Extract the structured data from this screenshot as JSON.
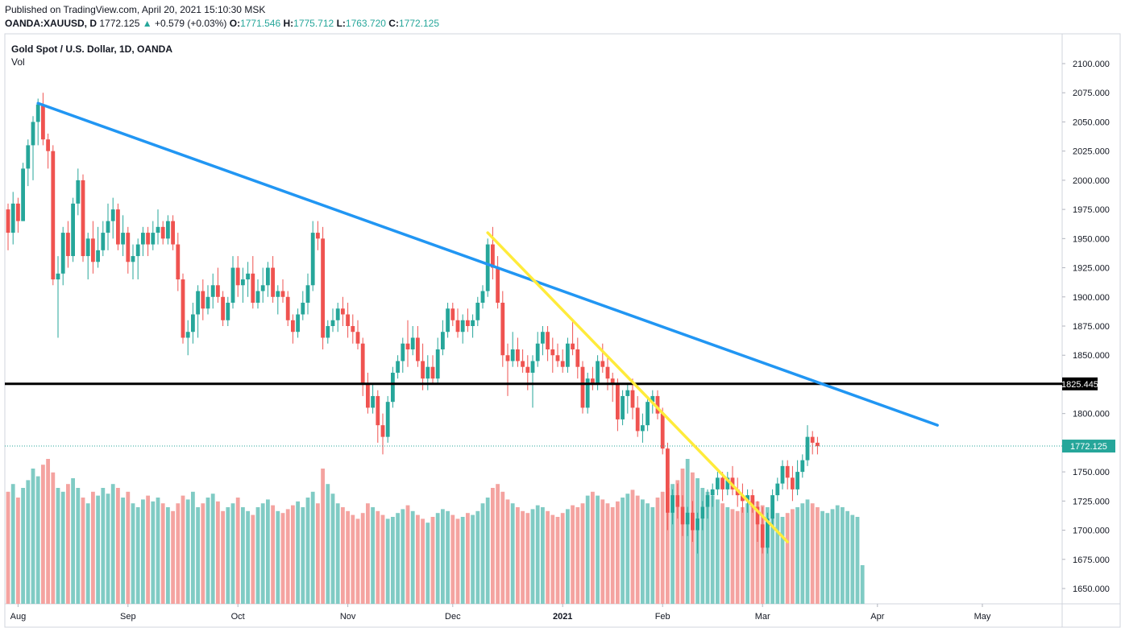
{
  "header": {
    "published": "Published on TradingView.com, April 20, 2021 15:10:30 MSK",
    "symbol_line": "OANDA:XAUUSD, D",
    "last": "1772.125",
    "change_arrow": "▲",
    "change": "+0.579 (+0.03%)",
    "o_label": "O:",
    "o_value": "1771.546",
    "h_label": "H:",
    "h_value": "1775.712",
    "l_label": "L:",
    "l_value": "1763.720",
    "c_label": "C:",
    "c_value": "1772.125"
  },
  "chart_data": {
    "type": "candlestick",
    "title": "Gold Spot / U.S. Dollar, 1D, OANDA",
    "volume_label": "Vol",
    "y_ticks": [
      2100,
      2075,
      2050,
      2025,
      2000,
      1975,
      1950,
      1925,
      1900,
      1875,
      1850,
      1825,
      1800,
      1775,
      1750,
      1725,
      1700,
      1675,
      1650
    ],
    "y_tick_labels": [
      "2100.000",
      "2075.000",
      "2050.000",
      "2025.000",
      "2000.000",
      "1975.000",
      "1950.000",
      "1925.000",
      "1900.000",
      "1875.000",
      "1850.000",
      "1800.000",
      "1750.000",
      "1725.000",
      "1700.000",
      "1675.000",
      "1650.000"
    ],
    "ylim": [
      1640,
      2110
    ],
    "x_labels": [
      {
        "text": "Aug",
        "bar": 2,
        "bold": false
      },
      {
        "text": "Sep",
        "bar": 24,
        "bold": false
      },
      {
        "text": "Oct",
        "bar": 46,
        "bold": false
      },
      {
        "text": "Nov",
        "bar": 68,
        "bold": false
      },
      {
        "text": "Dec",
        "bar": 89,
        "bold": false
      },
      {
        "text": "2021",
        "bar": 111,
        "bold": true
      },
      {
        "text": "Feb",
        "bar": 131,
        "bold": false
      },
      {
        "text": "Mar",
        "bar": 151,
        "bold": false
      },
      {
        "text": "Apr",
        "bar": 174,
        "bold": false
      },
      {
        "text": "May",
        "bar": 195,
        "bold": false
      }
    ],
    "candles": [
      [
        1975,
        1980,
        1940,
        1955
      ],
      [
        1955,
        1990,
        1945,
        1980
      ],
      [
        1980,
        1985,
        1955,
        1965
      ],
      [
        1965,
        2015,
        1965,
        2010
      ],
      [
        2010,
        2035,
        1995,
        2030
      ],
      [
        2030,
        2055,
        2000,
        2050
      ],
      [
        2050,
        2070,
        2030,
        2065
      ],
      [
        2065,
        2075,
        2030,
        2035
      ],
      [
        2035,
        2040,
        2010,
        2025
      ],
      [
        2025,
        2030,
        1910,
        1915
      ],
      [
        1915,
        1935,
        1865,
        1920
      ],
      [
        1920,
        1960,
        1910,
        1955
      ],
      [
        1955,
        1965,
        1925,
        1935
      ],
      [
        1935,
        1985,
        1930,
        1980
      ],
      [
        1980,
        2010,
        1970,
        2000
      ],
      [
        2000,
        2005,
        1930,
        1935
      ],
      [
        1935,
        1955,
        1915,
        1950
      ],
      [
        1950,
        1965,
        1920,
        1930
      ],
      [
        1930,
        1960,
        1925,
        1940
      ],
      [
        1940,
        1965,
        1935,
        1955
      ],
      [
        1955,
        1980,
        1940,
        1965
      ],
      [
        1965,
        1985,
        1950,
        1975
      ],
      [
        1975,
        1980,
        1940,
        1945
      ],
      [
        1945,
        1970,
        1935,
        1955
      ],
      [
        1955,
        1960,
        1920,
        1930
      ],
      [
        1930,
        1945,
        1915,
        1935
      ],
      [
        1935,
        1950,
        1915,
        1945
      ],
      [
        1945,
        1960,
        1935,
        1955
      ],
      [
        1955,
        1960,
        1935,
        1945
      ],
      [
        1945,
        1965,
        1940,
        1955
      ],
      [
        1955,
        1975,
        1945,
        1960
      ],
      [
        1960,
        1965,
        1945,
        1950
      ],
      [
        1950,
        1970,
        1945,
        1965
      ],
      [
        1965,
        1970,
        1940,
        1945
      ],
      [
        1945,
        1955,
        1905,
        1915
      ],
      [
        1915,
        1920,
        1860,
        1865
      ],
      [
        1865,
        1880,
        1850,
        1870
      ],
      [
        1870,
        1895,
        1860,
        1885
      ],
      [
        1885,
        1910,
        1865,
        1905
      ],
      [
        1905,
        1915,
        1880,
        1890
      ],
      [
        1890,
        1910,
        1885,
        1900
      ],
      [
        1900,
        1920,
        1890,
        1910
      ],
      [
        1910,
        1925,
        1895,
        1900
      ],
      [
        1900,
        1905,
        1875,
        1880
      ],
      [
        1880,
        1900,
        1875,
        1895
      ],
      [
        1895,
        1935,
        1890,
        1925
      ],
      [
        1925,
        1935,
        1900,
        1910
      ],
      [
        1910,
        1925,
        1895,
        1915
      ],
      [
        1915,
        1930,
        1900,
        1920
      ],
      [
        1920,
        1935,
        1890,
        1895
      ],
      [
        1895,
        1915,
        1890,
        1905
      ],
      [
        1905,
        1925,
        1895,
        1910
      ],
      [
        1910,
        1930,
        1900,
        1925
      ],
      [
        1925,
        1935,
        1895,
        1900
      ],
      [
        1900,
        1910,
        1885,
        1905
      ],
      [
        1905,
        1915,
        1895,
        1900
      ],
      [
        1900,
        1905,
        1875,
        1880
      ],
      [
        1880,
        1885,
        1860,
        1870
      ],
      [
        1870,
        1890,
        1865,
        1885
      ],
      [
        1885,
        1905,
        1880,
        1895
      ],
      [
        1895,
        1920,
        1885,
        1910
      ],
      [
        1910,
        1965,
        1905,
        1955
      ],
      [
        1955,
        1965,
        1940,
        1950
      ],
      [
        1950,
        1960,
        1855,
        1865
      ],
      [
        1865,
        1880,
        1860,
        1875
      ],
      [
        1875,
        1890,
        1870,
        1880
      ],
      [
        1880,
        1895,
        1870,
        1890
      ],
      [
        1890,
        1900,
        1875,
        1885
      ],
      [
        1885,
        1895,
        1865,
        1875
      ],
      [
        1875,
        1885,
        1860,
        1870
      ],
      [
        1870,
        1880,
        1855,
        1860
      ],
      [
        1860,
        1865,
        1815,
        1825
      ],
      [
        1825,
        1835,
        1800,
        1805
      ],
      [
        1805,
        1825,
        1800,
        1815
      ],
      [
        1815,
        1820,
        1775,
        1790
      ],
      [
        1790,
        1800,
        1765,
        1780
      ],
      [
        1780,
        1815,
        1775,
        1810
      ],
      [
        1810,
        1840,
        1805,
        1835
      ],
      [
        1835,
        1850,
        1830,
        1845
      ],
      [
        1845,
        1865,
        1835,
        1860
      ],
      [
        1860,
        1880,
        1840,
        1855
      ],
      [
        1855,
        1875,
        1850,
        1865
      ],
      [
        1865,
        1875,
        1840,
        1845
      ],
      [
        1845,
        1860,
        1820,
        1830
      ],
      [
        1830,
        1850,
        1820,
        1840
      ],
      [
        1840,
        1850,
        1825,
        1830
      ],
      [
        1830,
        1865,
        1825,
        1855
      ],
      [
        1855,
        1880,
        1850,
        1870
      ],
      [
        1870,
        1895,
        1865,
        1890
      ],
      [
        1890,
        1895,
        1875,
        1880
      ],
      [
        1880,
        1890,
        1865,
        1870
      ],
      [
        1870,
        1885,
        1860,
        1880
      ],
      [
        1880,
        1890,
        1870,
        1875
      ],
      [
        1875,
        1885,
        1865,
        1880
      ],
      [
        1880,
        1900,
        1875,
        1895
      ],
      [
        1895,
        1910,
        1890,
        1905
      ],
      [
        1905,
        1950,
        1900,
        1945
      ],
      [
        1945,
        1960,
        1915,
        1925
      ],
      [
        1925,
        1935,
        1890,
        1895
      ],
      [
        1895,
        1905,
        1840,
        1850
      ],
      [
        1850,
        1860,
        1815,
        1845
      ],
      [
        1845,
        1870,
        1840,
        1855
      ],
      [
        1855,
        1865,
        1840,
        1845
      ],
      [
        1845,
        1855,
        1835,
        1840
      ],
      [
        1840,
        1850,
        1820,
        1835
      ],
      [
        1835,
        1850,
        1805,
        1845
      ],
      [
        1845,
        1870,
        1840,
        1860
      ],
      [
        1860,
        1875,
        1850,
        1870
      ],
      [
        1870,
        1875,
        1845,
        1855
      ],
      [
        1855,
        1865,
        1835,
        1850
      ],
      [
        1850,
        1860,
        1840,
        1845
      ],
      [
        1845,
        1855,
        1835,
        1840
      ],
      [
        1840,
        1865,
        1835,
        1860
      ],
      [
        1860,
        1880,
        1850,
        1855
      ],
      [
        1855,
        1865,
        1830,
        1840
      ],
      [
        1840,
        1845,
        1800,
        1805
      ],
      [
        1805,
        1835,
        1800,
        1830
      ],
      [
        1830,
        1840,
        1820,
        1825
      ],
      [
        1825,
        1850,
        1820,
        1845
      ],
      [
        1845,
        1860,
        1835,
        1840
      ],
      [
        1840,
        1850,
        1820,
        1830
      ],
      [
        1830,
        1835,
        1810,
        1825
      ],
      [
        1825,
        1830,
        1785,
        1795
      ],
      [
        1795,
        1820,
        1790,
        1815
      ],
      [
        1815,
        1825,
        1800,
        1820
      ],
      [
        1820,
        1830,
        1795,
        1805
      ],
      [
        1805,
        1815,
        1780,
        1785
      ],
      [
        1785,
        1800,
        1775,
        1790
      ],
      [
        1790,
        1815,
        1785,
        1810
      ],
      [
        1810,
        1820,
        1800,
        1815
      ],
      [
        1815,
        1820,
        1795,
        1800
      ],
      [
        1800,
        1805,
        1765,
        1770
      ],
      [
        1770,
        1775,
        1700,
        1715
      ],
      [
        1715,
        1735,
        1705,
        1730
      ],
      [
        1730,
        1740,
        1710,
        1720
      ],
      [
        1720,
        1730,
        1695,
        1705
      ],
      [
        1705,
        1720,
        1695,
        1715
      ],
      [
        1715,
        1725,
        1690,
        1700
      ],
      [
        1700,
        1715,
        1680,
        1710
      ],
      [
        1710,
        1725,
        1700,
        1720
      ],
      [
        1720,
        1735,
        1710,
        1730
      ],
      [
        1730,
        1740,
        1720,
        1735
      ],
      [
        1735,
        1750,
        1730,
        1745
      ],
      [
        1745,
        1750,
        1725,
        1735
      ],
      [
        1735,
        1750,
        1730,
        1745
      ],
      [
        1745,
        1755,
        1730,
        1735
      ],
      [
        1735,
        1745,
        1720,
        1730
      ],
      [
        1730,
        1740,
        1715,
        1725
      ],
      [
        1725,
        1735,
        1715,
        1730
      ],
      [
        1730,
        1735,
        1715,
        1720
      ],
      [
        1720,
        1725,
        1690,
        1705
      ],
      [
        1705,
        1720,
        1680,
        1685
      ],
      [
        1685,
        1715,
        1680,
        1710
      ],
      [
        1710,
        1735,
        1705,
        1730
      ],
      [
        1730,
        1745,
        1725,
        1740
      ],
      [
        1740,
        1760,
        1735,
        1755
      ],
      [
        1755,
        1760,
        1735,
        1745
      ],
      [
        1745,
        1755,
        1725,
        1735
      ],
      [
        1735,
        1760,
        1730,
        1750
      ],
      [
        1750,
        1765,
        1745,
        1760
      ],
      [
        1760,
        1790,
        1755,
        1780
      ],
      [
        1780,
        1785,
        1765,
        1775
      ],
      [
        1775,
        1780,
        1765,
        1772
      ]
    ],
    "volumes": [
      58,
      62,
      55,
      60,
      64,
      70,
      66,
      72,
      75,
      68,
      60,
      58,
      62,
      65,
      60,
      55,
      52,
      58,
      56,
      60,
      57,
      62,
      60,
      55,
      58,
      52,
      50,
      54,
      56,
      53,
      55,
      52,
      50,
      48,
      52,
      56,
      54,
      58,
      50,
      52,
      55,
      57,
      53,
      48,
      50,
      52,
      55,
      50,
      48,
      46,
      50,
      52,
      54,
      51,
      48,
      47,
      49,
      51,
      53,
      50,
      55,
      58,
      52,
      70,
      62,
      57,
      52,
      50,
      48,
      46,
      44,
      47,
      52,
      50,
      48,
      46,
      44,
      45,
      47,
      49,
      51,
      48,
      46,
      44,
      42,
      45,
      47,
      49,
      48,
      46,
      44,
      45,
      47,
      46,
      48,
      52,
      55,
      60,
      62,
      58,
      54,
      52,
      50,
      48,
      47,
      49,
      51,
      50,
      48,
      46,
      45,
      47,
      49,
      51,
      50,
      52,
      56,
      58,
      56,
      54,
      52,
      50,
      53,
      55,
      57,
      59,
      56,
      54,
      52,
      50,
      55,
      58,
      60,
      62,
      64,
      70,
      75,
      68,
      65,
      60,
      58,
      56,
      54,
      52,
      50,
      49,
      48,
      50,
      52,
      54,
      53,
      51,
      50,
      49,
      47,
      45,
      47,
      49,
      50,
      52,
      54,
      52,
      50,
      48,
      47,
      49,
      51,
      50,
      48,
      46,
      45,
      20
    ],
    "hlines": [
      {
        "value": 1825.445,
        "label": "1825.445",
        "color": "#000000"
      }
    ],
    "last_price": {
      "value": 1772.125,
      "label": "1772.125",
      "color": "#26a69a"
    },
    "trendlines": [
      {
        "name": "blue-downtrend",
        "color": "#2196f3",
        "from": {
          "bar": 6,
          "price": 2066
        },
        "to": {
          "bar": 186,
          "price": 1790
        }
      },
      {
        "name": "yellow-downtrend",
        "color": "#ffeb3b",
        "from": {
          "bar": 96,
          "price": 1955
        },
        "to": {
          "bar": 156,
          "price": 1690
        }
      }
    ],
    "colors": {
      "up": "#26a69a",
      "down": "#ef5350",
      "vol_up": "#80cbc4",
      "vol_down": "#f4a3a0",
      "grid": "#f0f3fa",
      "axis": "#e0e3eb"
    },
    "grid": false,
    "legend_placement": "top-left"
  }
}
